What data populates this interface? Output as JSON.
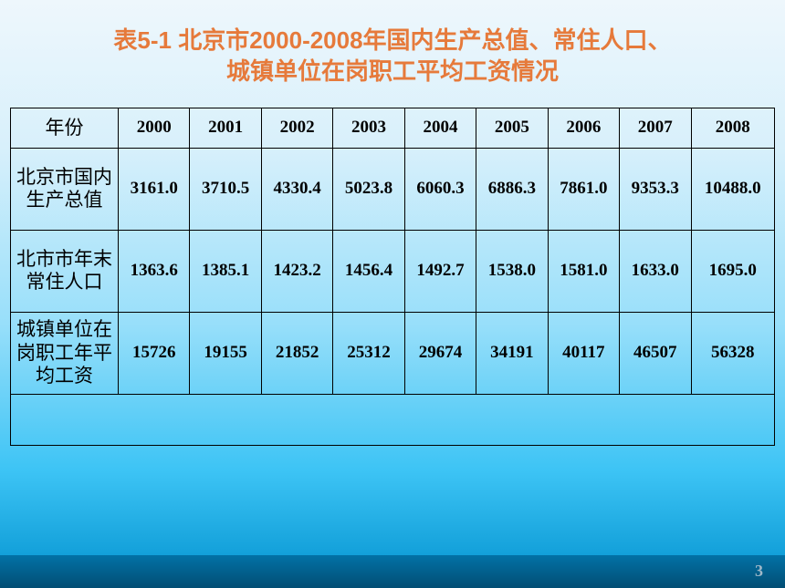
{
  "title": {
    "line1": "表5-1 北京市2000-2008年国内生产总值、常住人口、",
    "line2": "城镇单位在岗职工平均工资情况",
    "color": "#e67a3b",
    "fontsize": 26
  },
  "table": {
    "header_label": "年份",
    "years": [
      "2000",
      "2001",
      "2002",
      "2003",
      "2004",
      "2005",
      "2006",
      "2007",
      "2008"
    ],
    "year_fontsize": 19,
    "data_fontsize": 19,
    "rowheader_fontsize": 21,
    "rows": [
      {
        "label": "北京市国内生产总值",
        "values": [
          "3161.0",
          "3710.5",
          "4330.4",
          "5023.8",
          "6060.3",
          "6886.3",
          "7861.0",
          "9353.3",
          "10488.0"
        ]
      },
      {
        "label": "北市市年末常住人口",
        "values": [
          "1363.6",
          "1385.1",
          "1423.2",
          "1456.4",
          "1492.7",
          "1538.0",
          "1581.0",
          "1633.0",
          "1695.0"
        ]
      },
      {
        "label": "城镇单位在岗职工年平均工资",
        "values": [
          "15726",
          "19155",
          "21852",
          "25312",
          "29674",
          "34191",
          "40117",
          "46507",
          "56328"
        ]
      }
    ]
  },
  "footer": {
    "page_number": "3",
    "page_color": "#9fb8c8",
    "page_fontsize": 18
  }
}
